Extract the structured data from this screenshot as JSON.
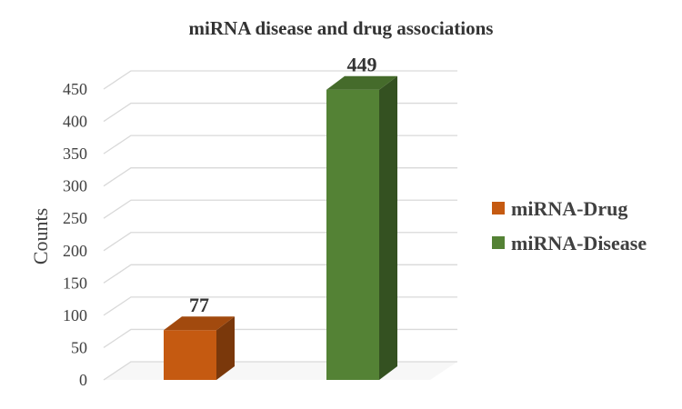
{
  "chart_data": {
    "type": "bar",
    "title": "miRNA disease and drug associations",
    "xlabel": "",
    "ylabel": "Counts",
    "ylim": [
      0,
      450
    ],
    "yticks": [
      0,
      50,
      100,
      150,
      200,
      250,
      300,
      350,
      400,
      450
    ],
    "grid": true,
    "legend_position": "right",
    "three_d": true,
    "series": [
      {
        "name": "miRNA-Drug",
        "value": 77,
        "label": "77",
        "color": "#C55A11"
      },
      {
        "name": "miRNA-Disease",
        "value": 449,
        "label": "449",
        "color": "#548235"
      }
    ]
  }
}
